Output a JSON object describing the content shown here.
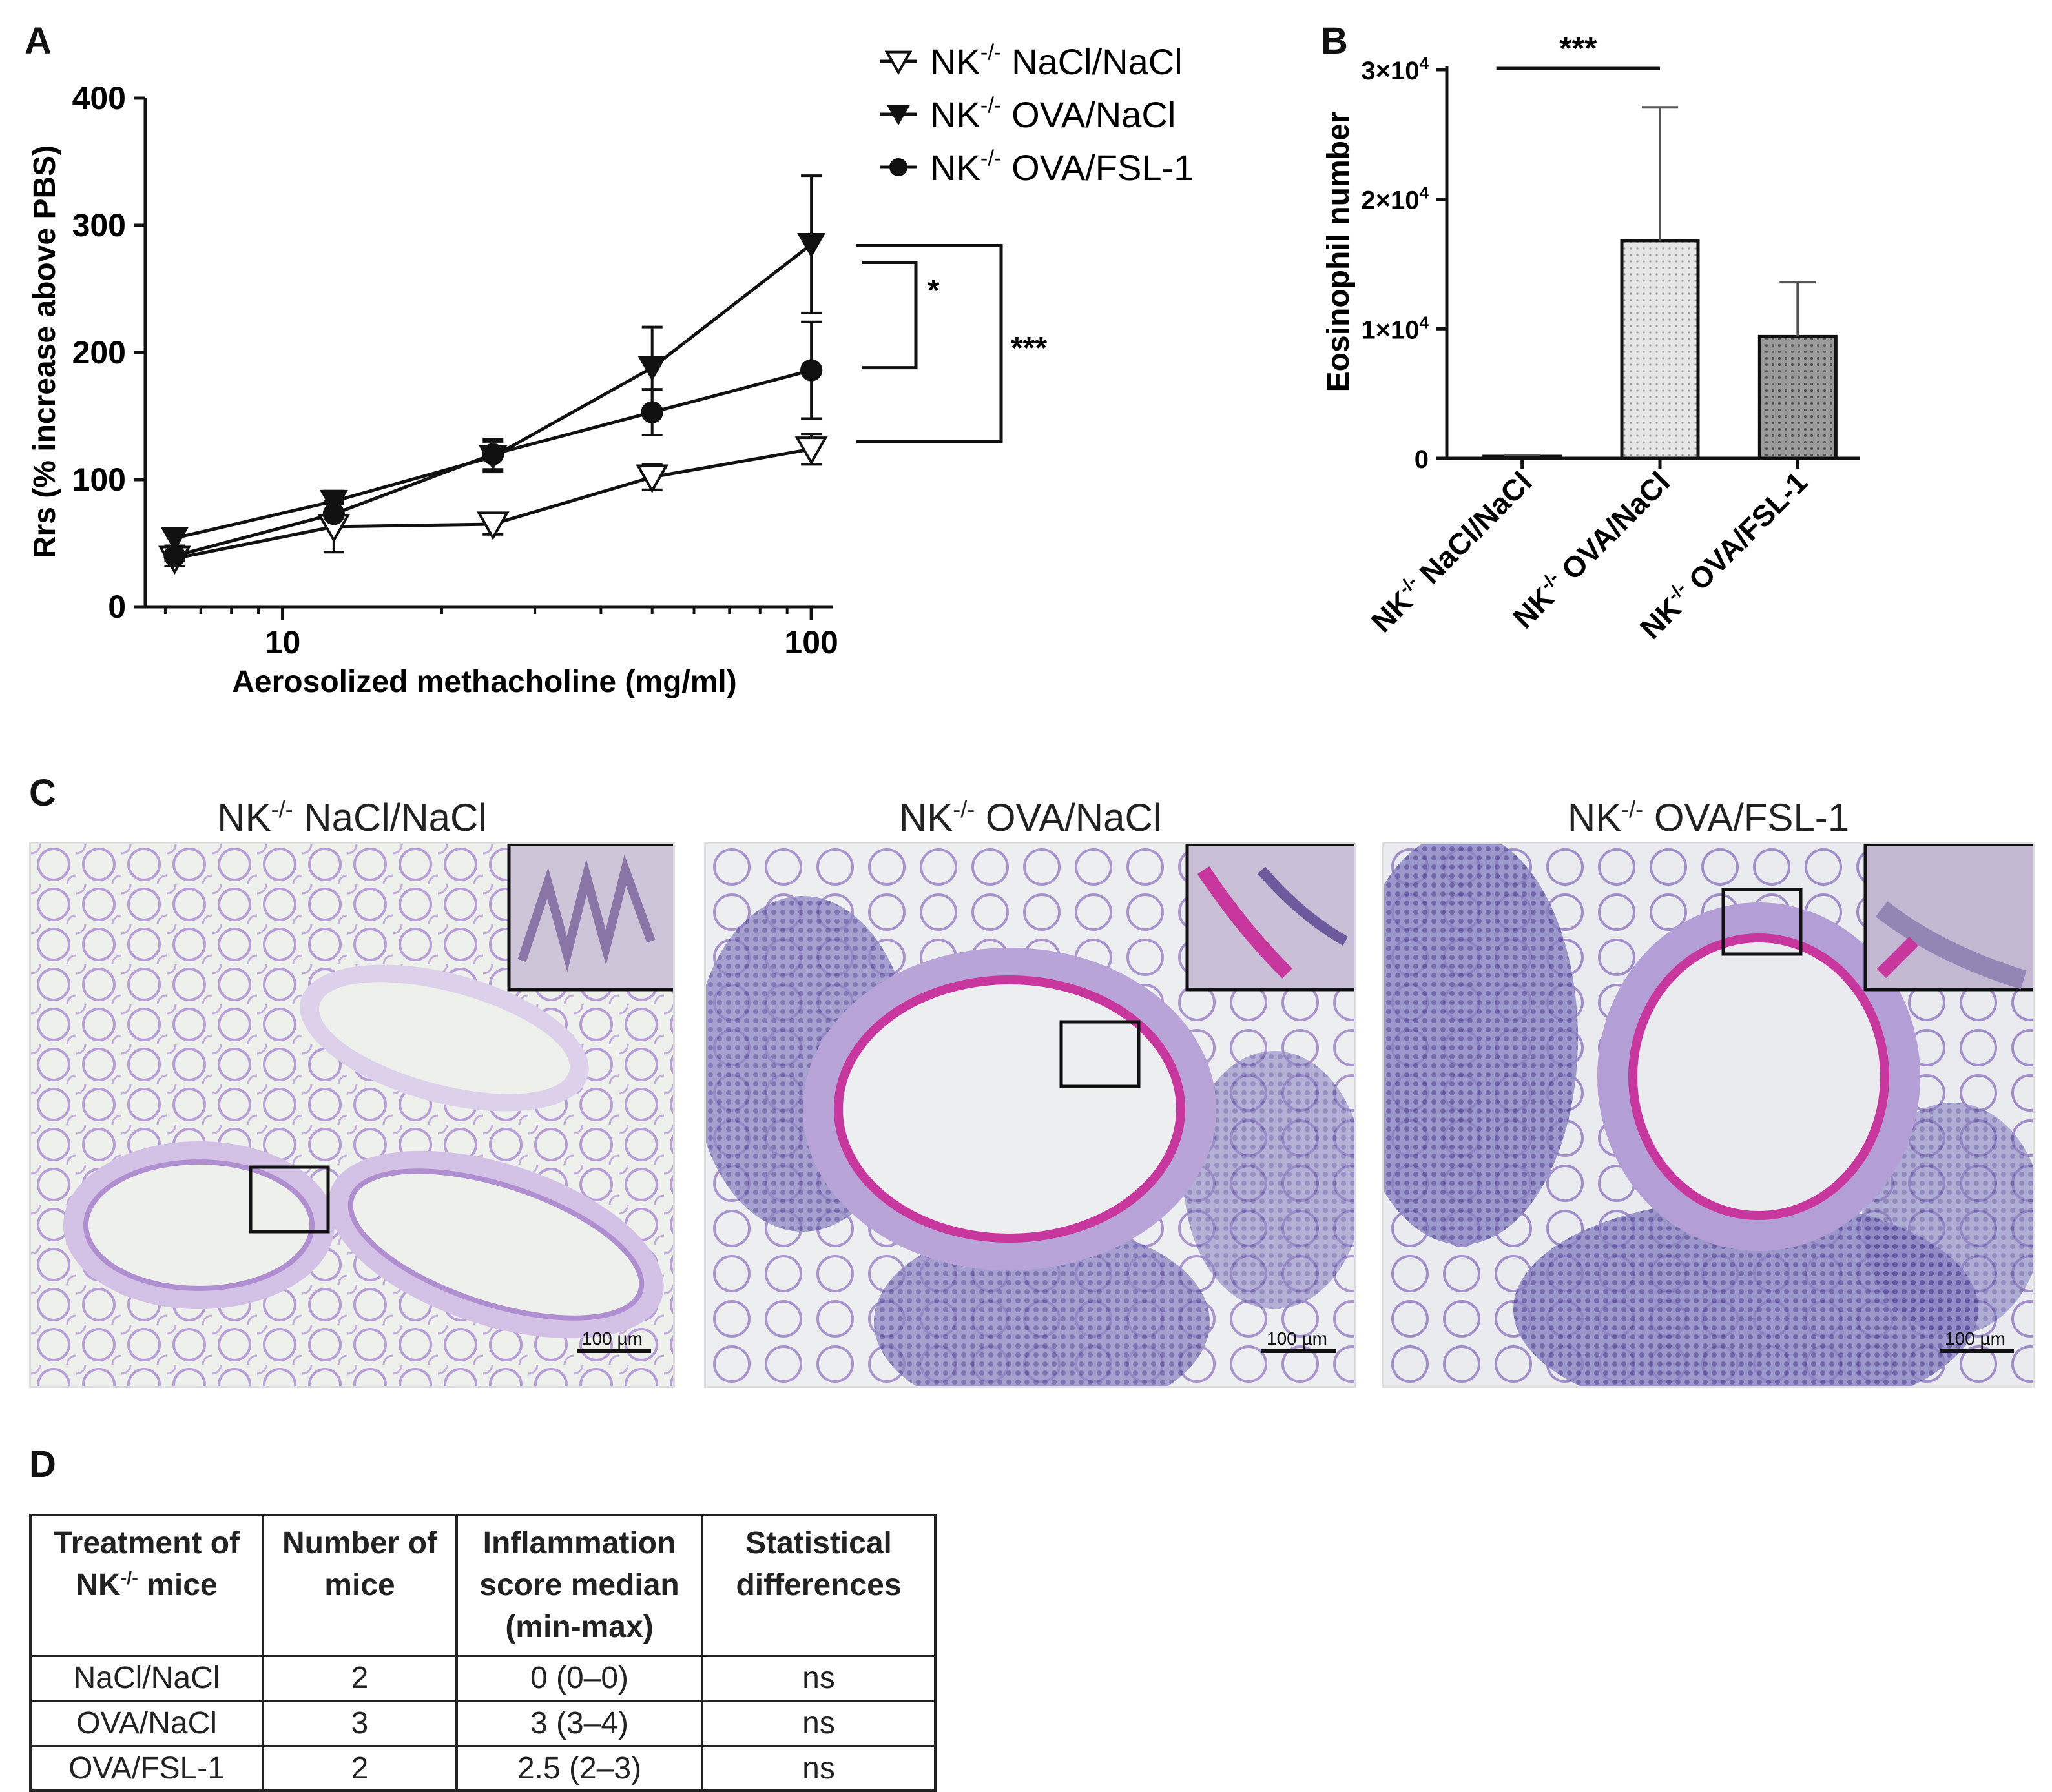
{
  "panels": {
    "a_letter": "A",
    "b_letter": "B",
    "c_letter": "C",
    "d_letter": "D"
  },
  "chart_data": [
    {
      "type": "line",
      "xlabel": "Aerosolized methacholine (mg/ml)",
      "ylabel": "Rrs (% increase above PBS)",
      "x_scale": "log",
      "xlim": [
        5.5,
        110
      ],
      "ylim": [
        0,
        400
      ],
      "x_ticks": [
        10,
        100
      ],
      "y_ticks": [
        0,
        100,
        200,
        300,
        400
      ],
      "legend_position": "top-right",
      "series": [
        {
          "name": "NK-/- NaCl/NaCl",
          "prefix": "NK",
          "sup": "-/-",
          "suffix": " NaCl/NaCl",
          "marker": "open-triangle-down",
          "x": [
            6.25,
            12.5,
            25,
            50,
            100
          ],
          "y": [
            38,
            63,
            65,
            102,
            124
          ],
          "err": [
            6,
            20,
            8,
            10,
            12
          ]
        },
        {
          "name": "NK-/- OVA/NaCl",
          "prefix": "NK",
          "sup": "-/-",
          "suffix": " OVA/NaCl",
          "marker": "filled-triangle-down",
          "x": [
            6.25,
            12.5,
            25,
            50,
            100
          ],
          "y": [
            54,
            83,
            118,
            188,
            285
          ],
          "err": [
            6,
            8,
            12,
            32,
            54
          ]
        },
        {
          "name": "NK-/- OVA/FSL-1",
          "prefix": "NK",
          "sup": "-/-",
          "suffix": " OVA/FSL-1",
          "marker": "filled-circle",
          "x": [
            6.25,
            12.5,
            25,
            50,
            100
          ],
          "y": [
            40,
            73,
            120,
            153,
            186
          ],
          "err": [
            4,
            8,
            12,
            18,
            38
          ]
        }
      ],
      "significance": [
        {
          "label": "*",
          "from_series": "NK-/- OVA/NaCl",
          "to_series": "NK-/- OVA/FSL-1"
        },
        {
          "label": "***",
          "from_series": "NK-/- OVA/NaCl",
          "to_series": "NK-/- NaCl/NaCl"
        }
      ]
    },
    {
      "type": "bar",
      "ylabel": "Eosinophil number",
      "ylim": [
        0,
        30000
      ],
      "y_ticks": [
        0,
        10000,
        20000,
        30000
      ],
      "y_tick_labels": [
        {
          "base": "0",
          "exp": ""
        },
        {
          "base": "1×10",
          "exp": "4"
        },
        {
          "base": "2×10",
          "exp": "4"
        },
        {
          "base": "3×10",
          "exp": "4"
        }
      ],
      "categories": [
        {
          "prefix": "NK",
          "sup": "-/-",
          "suffix": " NaCl/NaCl"
        },
        {
          "prefix": "NK",
          "sup": "-/-",
          "suffix": " OVA/NaCl"
        },
        {
          "prefix": "NK",
          "sup": "-/-",
          "suffix": " OVA/FSL-1"
        }
      ],
      "values": [
        150,
        16800,
        9400
      ],
      "errors": [
        100,
        10300,
        4200
      ],
      "fills": [
        "#ffffff",
        "#e6e6e6",
        "#9a9a9a"
      ],
      "significance": [
        {
          "label": "***",
          "between": [
            0,
            1
          ]
        }
      ]
    }
  ],
  "histology": [
    {
      "prefix": "NK",
      "sup": "-/-",
      "suffix": " NaCl/NaCl",
      "scale_bar": "100 µm"
    },
    {
      "prefix": "NK",
      "sup": "-/-",
      "suffix": " OVA/NaCl",
      "scale_bar": "100 µm"
    },
    {
      "prefix": "NK",
      "sup": "-/-",
      "suffix": " OVA/FSL-1",
      "scale_bar": "100 µm"
    }
  ],
  "table": {
    "headers": [
      {
        "text": "Treatment of NK",
        "sup": "-/-",
        "after": " mice"
      },
      {
        "text": "Number of mice",
        "sup": "",
        "after": ""
      },
      {
        "text": "Inflammation score median (min-max)",
        "sup": "",
        "after": ""
      },
      {
        "text": "Statistical differences",
        "sup": "",
        "after": ""
      }
    ],
    "rows": [
      [
        "NaCl/NaCl",
        "2",
        "0 (0–0)",
        "ns"
      ],
      [
        "OVA/NaCl",
        "3",
        "3 (3–4)",
        "ns"
      ],
      [
        "OVA/FSL-1",
        "2",
        "2.5 (2–3)",
        "ns"
      ]
    ]
  }
}
